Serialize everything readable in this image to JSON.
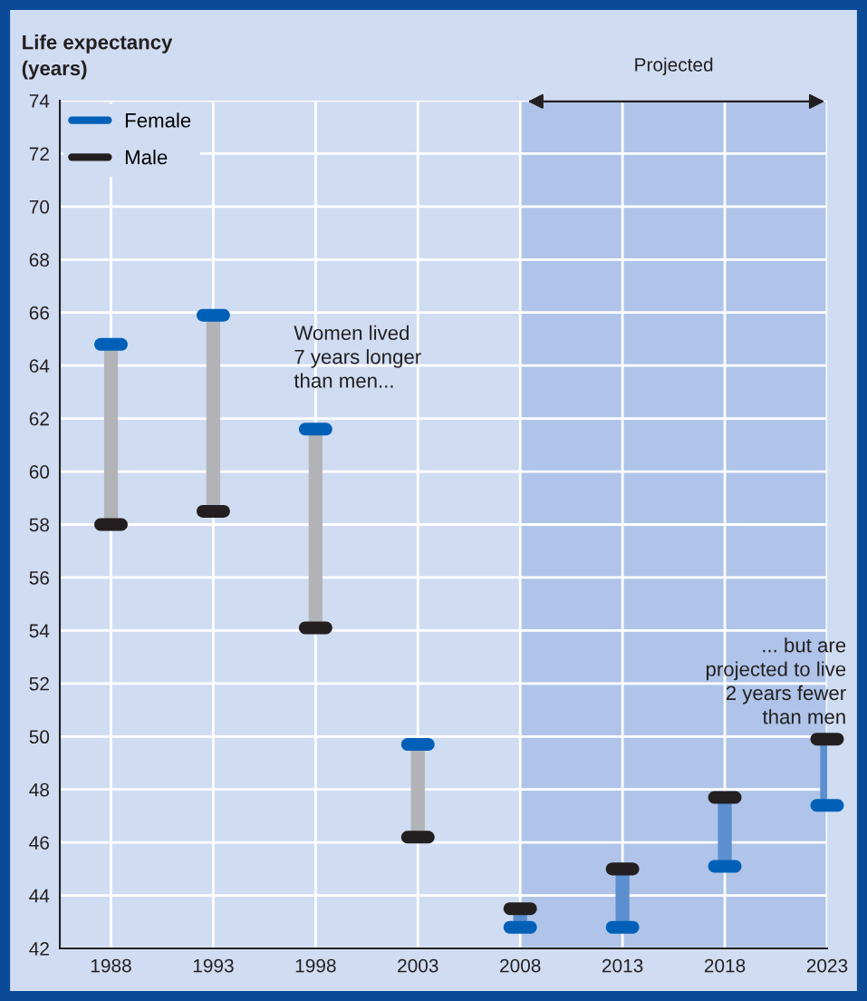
{
  "chart_data": {
    "type": "scatter",
    "ylabel": "Life expectancy\n(years)",
    "categories": [
      "1988",
      "1993",
      "1998",
      "2003",
      "2008",
      "2013",
      "2018",
      "2023"
    ],
    "series": [
      {
        "name": "Female",
        "color": "#0060b8",
        "values": [
          64.8,
          65.9,
          61.6,
          49.7,
          42.8,
          42.8,
          45.1,
          47.4
        ]
      },
      {
        "name": "Male",
        "color": "#231f20",
        "values": [
          58.0,
          58.5,
          54.1,
          46.2,
          43.5,
          45.0,
          47.7,
          49.9
        ]
      }
    ],
    "ylim": [
      42,
      74
    ],
    "yticks": [
      42,
      44,
      46,
      48,
      50,
      52,
      54,
      56,
      58,
      60,
      62,
      64,
      66,
      68,
      70,
      72,
      74
    ],
    "bands": [
      {
        "axis": "x",
        "from": "2008",
        "to": "2023",
        "label": "Projected",
        "color": "#afc4e8"
      }
    ],
    "annotations": [
      "Women lived\n7 years longer\nthan men...",
      "... but are\nprojected to live\n2 years fewer\nthan men"
    ],
    "grid": true,
    "legend": "top left"
  }
}
